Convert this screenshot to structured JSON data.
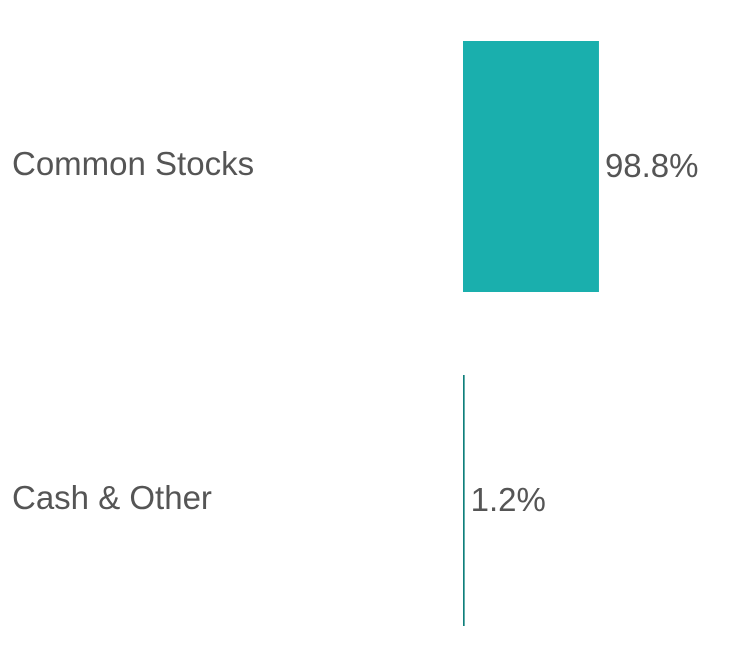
{
  "chart_data": {
    "type": "hbar",
    "categories": [
      "Common Stocks",
      "Cash & Other"
    ],
    "values": [
      98.8,
      1.2
    ],
    "value_labels": [
      "98.8%",
      "1.2%"
    ],
    "colors": [
      "#1aafad",
      "#0f7f7b"
    ],
    "xlim": [
      0,
      100
    ]
  }
}
